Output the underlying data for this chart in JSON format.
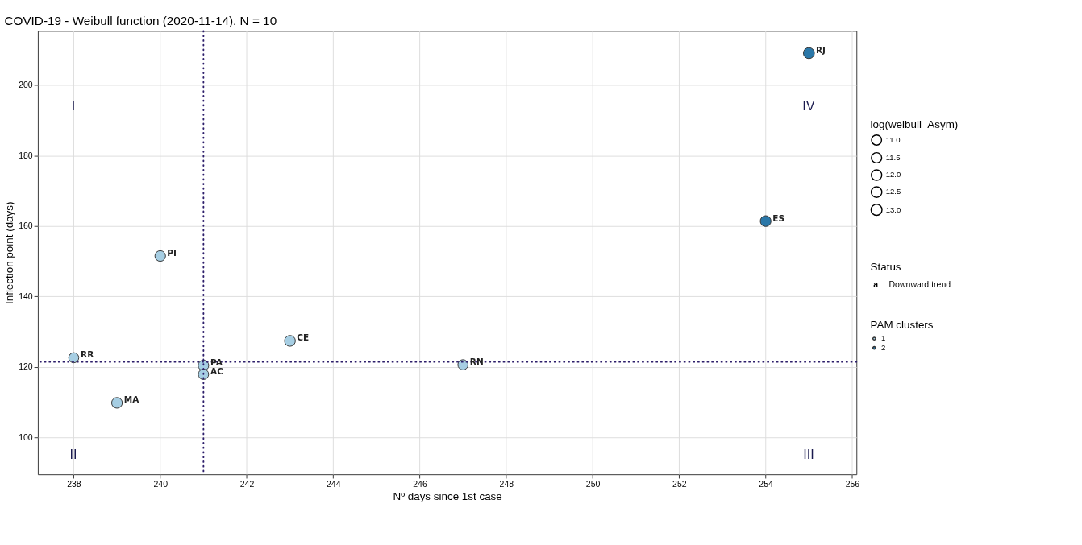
{
  "chart_data": {
    "type": "bubble",
    "title": "COVID-19 - Weibull function (2020-11-14). N = 10",
    "xlabel": "Nº days since 1st case",
    "ylabel": "Inflection point (days)",
    "legend_title": "PAM clusters",
    "xlim": [
      237.17,
      256.1
    ],
    "xticks": [
      238,
      240,
      242,
      244,
      246,
      248,
      250,
      252,
      254,
      256
    ],
    "ylim": [
      89.5,
      215.4
    ],
    "yticks": [
      100,
      120,
      140,
      160,
      180,
      200
    ],
    "size_legend": [
      {
        "value": 11,
        "label": "11.0"
      },
      {
        "value": 11.5,
        "label": "11.5"
      },
      {
        "value": 12,
        "label": "12.0"
      },
      {
        "value": 12.5,
        "label": "12.5"
      },
      {
        "value": 13,
        "label": "13.0"
      }
    ],
    "series": [
      {
        "name": "1",
        "color": "#a6cee3",
        "x": [
          238,
          239,
          240,
          241,
          241,
          243,
          247
        ],
        "values": [
          122.6,
          109.8,
          151.5,
          120.4,
          117.9,
          127.4,
          120.6
        ],
        "sizes": [
          11.1,
          12.4,
          12.3,
          12.2,
          11.9,
          12.8,
          11.3
        ]
      },
      {
        "name": "2",
        "color": "#2a77a8",
        "x": [
          254,
          255
        ],
        "values": [
          161.4,
          209.1
        ],
        "sizes": [
          12.6,
          13.2
        ]
      }
    ],
    "ref_lines": [
      {
        "axis": "x",
        "value": 241,
        "color": "#2d1e6b",
        "line_style": "dotted"
      },
      {
        "axis": "y",
        "value": 121.4,
        "color": "#2d1e6b",
        "line_style": "dotted"
      }
    ],
    "annotations": [
      "log(weibull_Asym)",
      "Status",
      "a",
      "Downward trend",
      {
        "text": "RR",
        "x": 238,
        "y": 122.6
      },
      {
        "text": "MA",
        "x": 239,
        "y": 109.8
      },
      {
        "text": "PI",
        "x": 240,
        "y": 151.5
      },
      {
        "text": "PA",
        "x": 241,
        "y": 120.4
      },
      {
        "text": "AC",
        "x": 241,
        "y": 117.9
      },
      {
        "text": "CE",
        "x": 243,
        "y": 127.4
      },
      {
        "text": "RN",
        "x": 247,
        "y": 120.6
      },
      {
        "text": "ES",
        "x": 254,
        "y": 161.4
      },
      {
        "text": "RJ",
        "x": 255,
        "y": 209.1
      },
      "I",
      "IV",
      "II",
      "III"
    ],
    "grid": true,
    "legend": "right",
    "marker": "circle"
  }
}
